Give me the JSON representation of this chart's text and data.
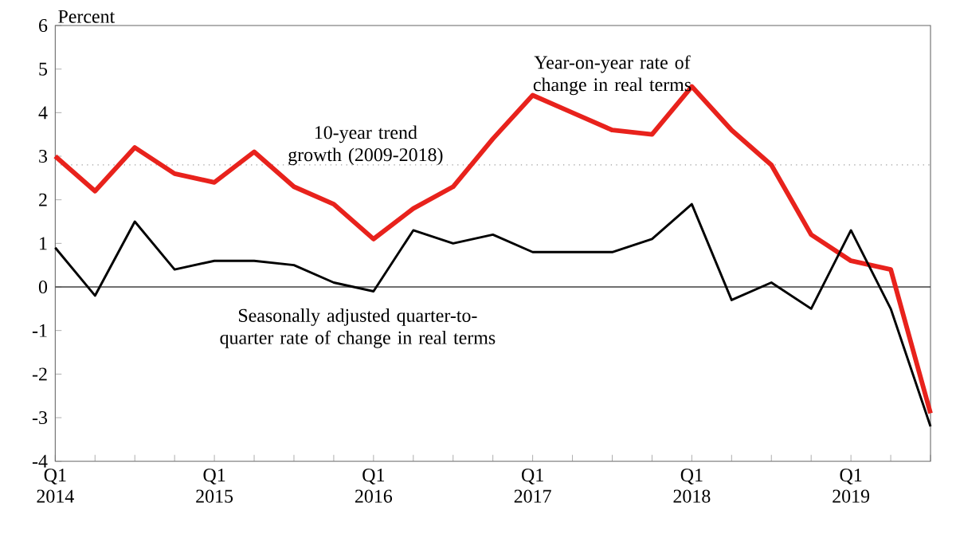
{
  "chart_data": {
    "type": "line",
    "ylabel": "Percent",
    "categories": [
      "Q1 2014",
      null,
      null,
      null,
      "Q1 2015",
      null,
      null,
      null,
      "Q1 2016",
      null,
      null,
      null,
      "Q1 2017",
      null,
      null,
      null,
      "Q1 2018",
      null,
      null,
      null,
      "Q1 2019",
      null,
      null
    ],
    "series": [
      {
        "name": "Year-on-year rate of change in real terms",
        "color": "#e8221c",
        "values": [
          3.0,
          2.2,
          3.2,
          2.6,
          2.4,
          3.1,
          2.3,
          1.9,
          1.1,
          1.8,
          2.3,
          3.4,
          4.4,
          4.0,
          3.6,
          3.5,
          4.6,
          3.6,
          2.8,
          1.2,
          0.6,
          0.4,
          -2.9
        ]
      },
      {
        "name": "Seasonally adjusted quarter-to-quarter rate of change in real terms",
        "color": "#000000",
        "values": [
          0.9,
          -0.2,
          1.5,
          0.4,
          0.6,
          0.6,
          0.5,
          0.1,
          -0.1,
          1.3,
          1.0,
          1.2,
          0.8,
          0.8,
          0.8,
          1.1,
          1.9,
          -0.3,
          0.1,
          -0.5,
          1.3,
          -0.5,
          -3.2
        ]
      }
    ],
    "ylim": [
      -4,
      6
    ],
    "yticks": [
      -4,
      -3,
      -2,
      -1,
      0,
      1,
      2,
      3,
      4,
      5,
      6
    ],
    "grid": false,
    "legend": false,
    "ref_lines": [
      {
        "axis": "y",
        "value": 2.8,
        "label": "10-year trend growth (2009-2018)",
        "color": "#a0a0a0",
        "line_style": "dotted"
      },
      {
        "axis": "y",
        "value": 0,
        "color": "#404040",
        "line_style": "solid"
      }
    ]
  }
}
